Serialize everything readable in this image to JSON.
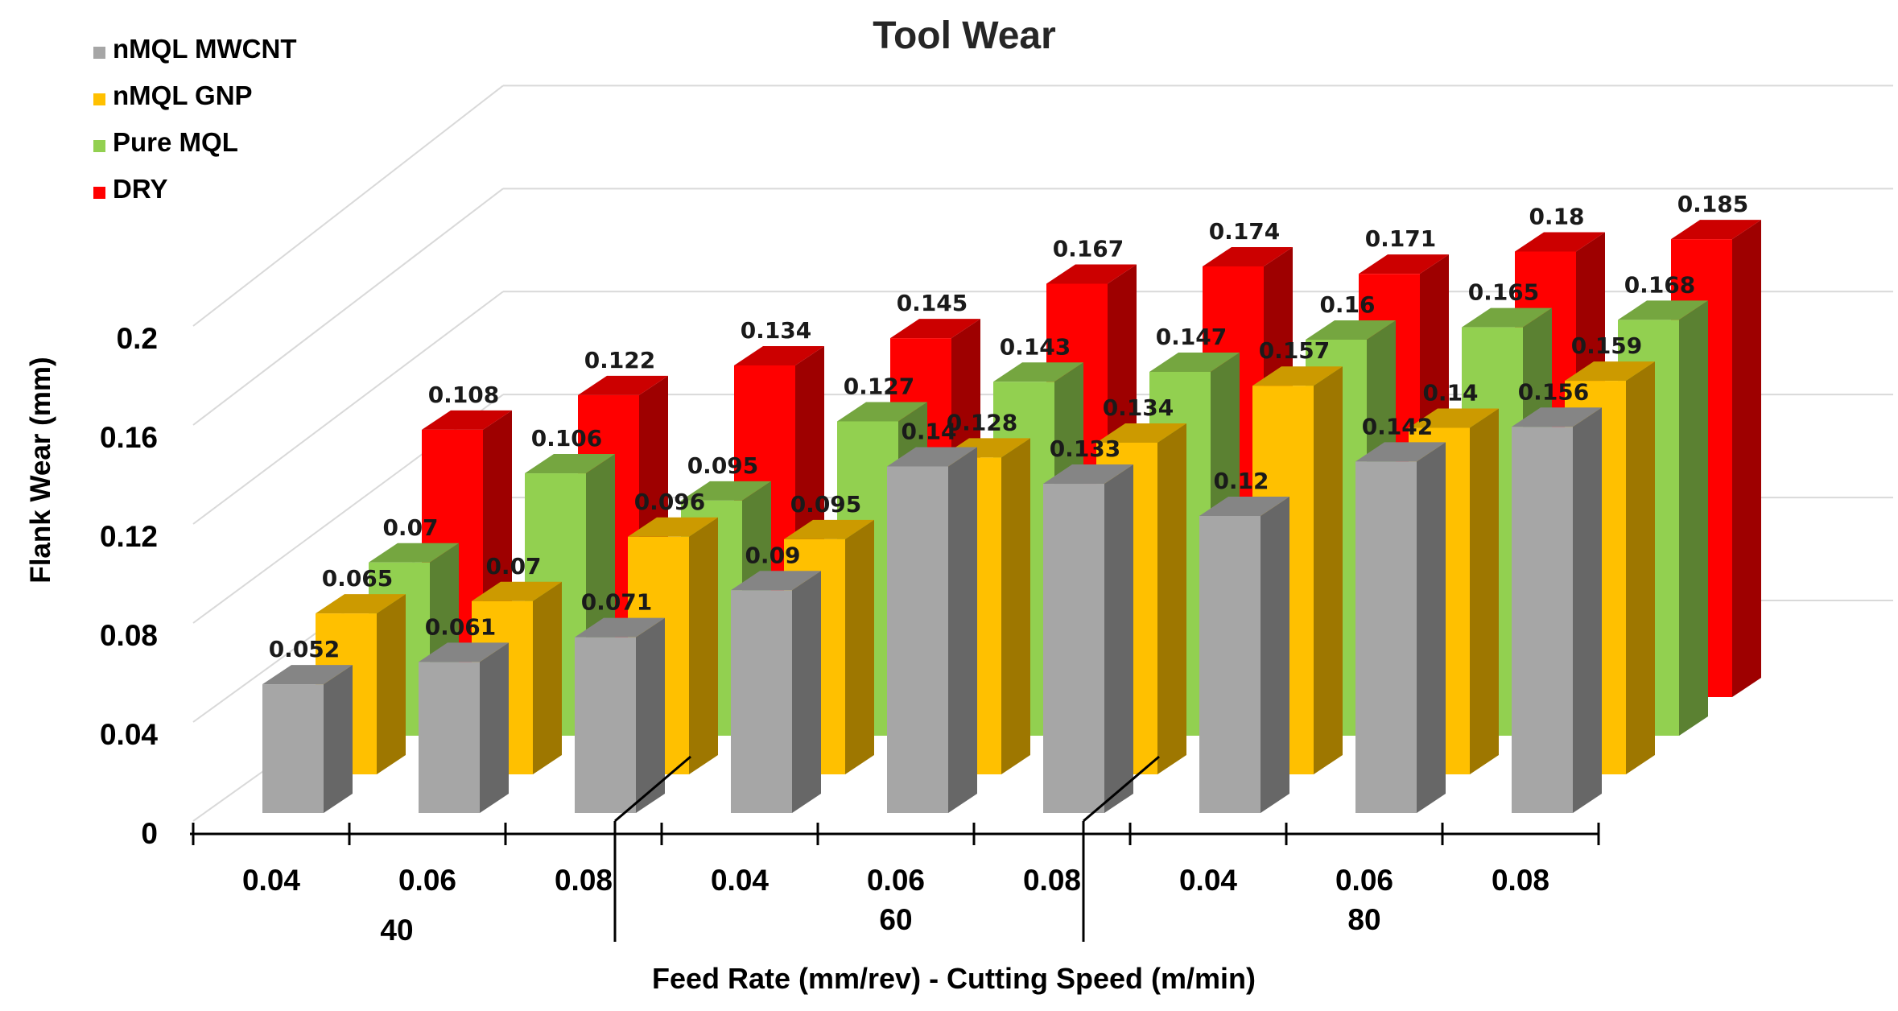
{
  "chart_data": {
    "type": "bar",
    "title": "Tool Wear",
    "ylabel": "Flank Wear (mm)",
    "xlabel": "Feed Rate (mm/rev) - Cutting Speed (m/min)",
    "ylim": [
      0,
      0.2
    ],
    "yticks": [
      "0",
      "0.04",
      "0.08",
      "0.12",
      "0.16",
      "0.2"
    ],
    "categories": [
      "0.04",
      "0.06",
      "0.08",
      "0.04",
      "0.06",
      "0.08",
      "0.04",
      "0.06",
      "0.08"
    ],
    "groups": [
      {
        "label": "40",
        "span": [
          0,
          2
        ]
      },
      {
        "label": "60",
        "span": [
          3,
          5
        ]
      },
      {
        "label": "80",
        "span": [
          6,
          8
        ]
      }
    ],
    "legend_position": "top-left",
    "grid": true,
    "series": [
      {
        "name": "nMQL MWCNT",
        "color": "#a6a6a6",
        "values": [
          0.052,
          0.061,
          0.071,
          0.09,
          0.14,
          0.133,
          0.12,
          0.142,
          0.156
        ]
      },
      {
        "name": "nMQL GNP",
        "color": "#ffc000",
        "values": [
          0.065,
          0.07,
          0.096,
          0.095,
          0.128,
          0.134,
          0.157,
          0.14,
          0.159
        ]
      },
      {
        "name": "Pure MQL",
        "color": "#92d050",
        "values": [
          0.07,
          0.106,
          0.095,
          0.127,
          0.143,
          0.147,
          0.16,
          0.165,
          0.168
        ]
      },
      {
        "name": "DRY",
        "color": "#ff0000",
        "values": [
          0.108,
          0.122,
          0.134,
          0.145,
          0.167,
          0.174,
          0.171,
          0.18,
          0.185
        ]
      }
    ]
  }
}
